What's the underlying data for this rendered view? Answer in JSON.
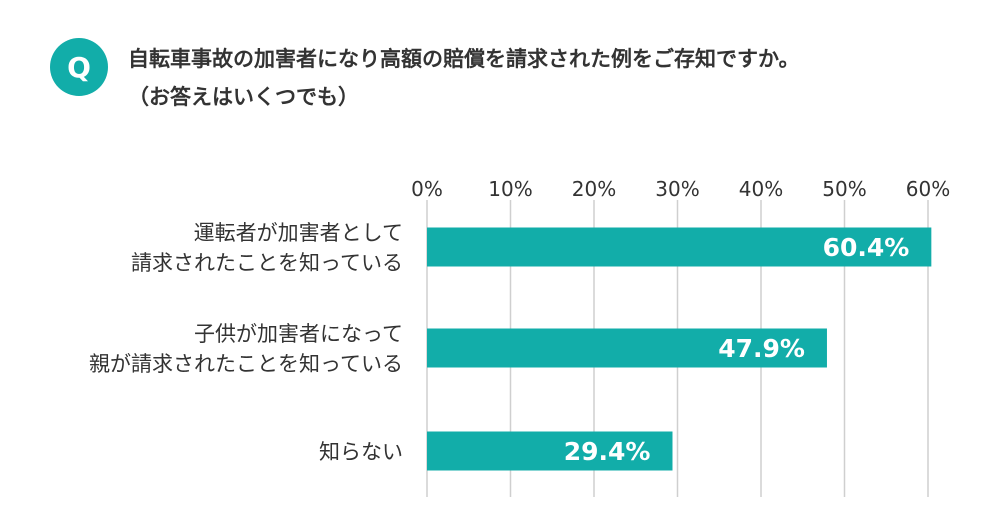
{
  "question": {
    "badge": "Q",
    "line1": "自転車事故の加害者になり高額の賠償を請求された例をご存知ですか。",
    "line2": "（お答えはいくつでも）"
  },
  "colors": {
    "accent": "#12ada9",
    "grid": "#cfcfcf",
    "text": "#333333",
    "bar_label": "#ffffff"
  },
  "chart_data": {
    "type": "bar",
    "orientation": "horizontal",
    "title": "",
    "xlabel": "",
    "ylabel": "",
    "xlim": [
      0,
      60
    ],
    "ticks": [
      0,
      10,
      20,
      30,
      40,
      50,
      60
    ],
    "tick_labels": [
      "0%",
      "10%",
      "20%",
      "30%",
      "40%",
      "50%",
      "60%"
    ],
    "grid": true,
    "categories": [
      [
        "運転者が加害者として",
        "請求されたことを知っている"
      ],
      [
        "子供が加害者になって",
        "親が請求されたことを知っている"
      ],
      [
        "知らない"
      ]
    ],
    "values": [
      60.4,
      47.9,
      29.4
    ],
    "value_labels": [
      "60.4%",
      "47.9%",
      "29.4%"
    ]
  }
}
